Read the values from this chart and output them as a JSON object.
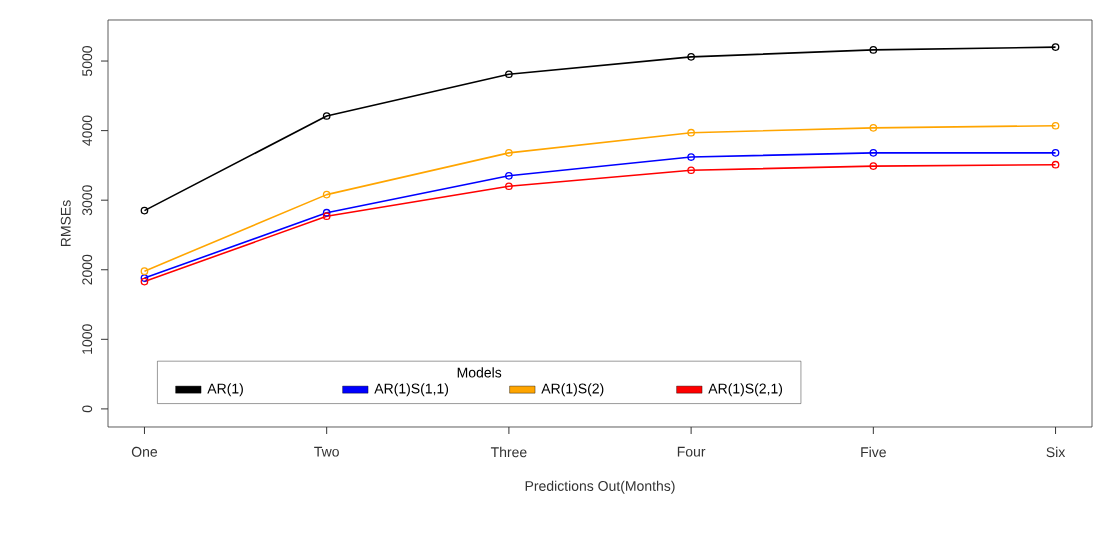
{
  "chart_data": {
    "type": "line",
    "xlabel": "Predictions Out(Months)",
    "ylabel": "RMSEs",
    "categories": [
      "One",
      "Two",
      "Three",
      "Four",
      "Five",
      "Six"
    ],
    "series": [
      {
        "name": "AR(1)",
        "color": "#000000",
        "values": [
          2850,
          4210,
          4810,
          5060,
          5160,
          5200
        ]
      },
      {
        "name": "AR(1)S(1,1)",
        "color": "#0000ff",
        "values": [
          1880,
          2820,
          3350,
          3620,
          3680,
          3680
        ]
      },
      {
        "name": "AR(1)S(2)",
        "color": "#ffa500",
        "values": [
          1980,
          3080,
          3680,
          3970,
          4040,
          4070
        ]
      },
      {
        "name": "AR(1)S(2,1)",
        "color": "#ff0000",
        "values": [
          1830,
          2770,
          3200,
          3430,
          3490,
          3510
        ]
      }
    ],
    "ylim": [
      -260,
      5590
    ],
    "yticks": [
      0,
      1000,
      2000,
      3000,
      4000,
      5000
    ],
    "legend": "bottom left",
    "legend_title": "Models",
    "marker": "circle",
    "line_style": "solid",
    "grid": false
  }
}
